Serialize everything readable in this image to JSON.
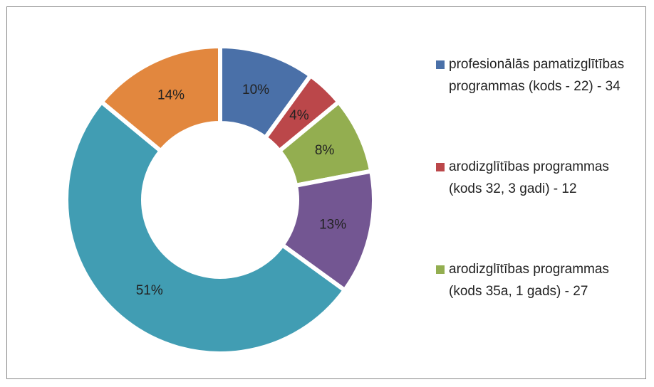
{
  "chart_data": {
    "type": "donut",
    "categories": [
      "profesionālās pamatizglītības programmas (kods - 22) - 34",
      "arodizglītības programmas (kods 32, 3 gadi) - 12",
      "arodizglītības programmas (kods 35a, 1 gads) - 27",
      null,
      null,
      null
    ],
    "values": [
      10,
      4,
      8,
      13,
      51,
      14
    ],
    "value_labels": [
      "10%",
      "4%",
      "8%",
      "13%",
      "51%",
      "14%"
    ],
    "colors": [
      "#4a70a8",
      "#bb474a",
      "#93ae50",
      "#735692",
      "#419db3",
      "#e2873e"
    ],
    "legend": "right"
  }
}
